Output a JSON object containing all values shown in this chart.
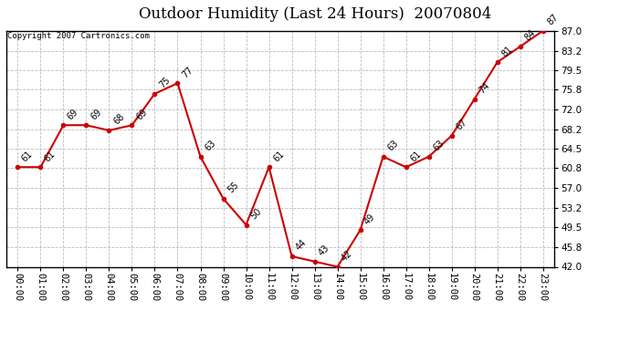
{
  "title": "Outdoor Humidity (Last 24 Hours)  20070804",
  "copyright": "Copyright 2007 Cartronics.com",
  "x_labels": [
    "00:00",
    "01:00",
    "02:00",
    "03:00",
    "04:00",
    "05:00",
    "06:00",
    "07:00",
    "08:00",
    "09:00",
    "10:00",
    "11:00",
    "12:00",
    "13:00",
    "14:00",
    "15:00",
    "16:00",
    "17:00",
    "18:00",
    "19:00",
    "20:00",
    "21:00",
    "22:00",
    "23:00"
  ],
  "y_values": [
    61,
    61,
    69,
    69,
    68,
    69,
    75,
    77,
    63,
    55,
    50,
    61,
    44,
    43,
    42,
    49,
    63,
    61,
    63,
    67,
    74,
    81,
    84,
    87
  ],
  "point_labels": [
    "61",
    "61",
    "69",
    "69",
    "68",
    "69",
    "75",
    "77",
    "63",
    "55",
    "50",
    "61",
    "44",
    "43",
    "42",
    "49",
    "63",
    "61",
    "63",
    "67",
    "74",
    "81",
    "84",
    "87"
  ],
  "y_ticks": [
    42.0,
    45.8,
    49.5,
    53.2,
    57.0,
    60.8,
    64.5,
    68.2,
    72.0,
    75.8,
    79.5,
    83.2,
    87.0
  ],
  "ylim": [
    42.0,
    87.0
  ],
  "line_color": "#cc0000",
  "marker_color": "#cc0000",
  "bg_color": "#ffffff",
  "plot_bg_color": "#ffffff",
  "grid_color": "#bbbbbb",
  "title_fontsize": 12,
  "copyright_fontsize": 6.5,
  "label_fontsize": 7,
  "tick_fontsize": 7.5
}
